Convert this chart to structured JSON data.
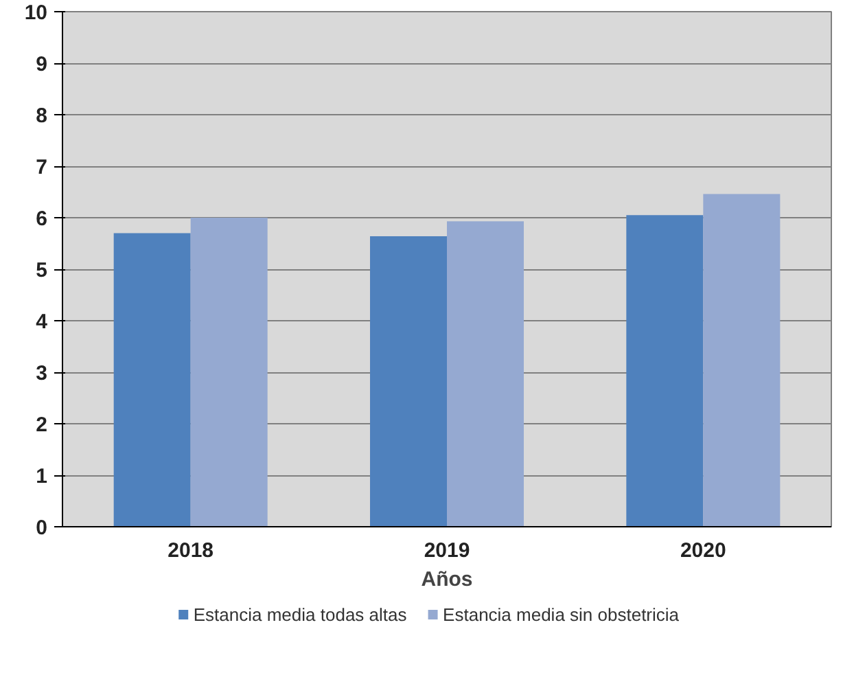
{
  "chart_data": {
    "type": "bar",
    "xlabel": "Años",
    "categories": [
      "2018",
      "2019",
      "2020"
    ],
    "series": [
      {
        "name": "Estancia media todas altas",
        "color": "#4f81bd",
        "values": [
          5.7,
          5.64,
          6.05
        ]
      },
      {
        "name": "Estancia media sin obstetricia",
        "color": "#95a9d1",
        "values": [
          6.0,
          5.93,
          6.46
        ]
      }
    ],
    "ylim": [
      0,
      10
    ],
    "yticks": [
      0,
      1,
      2,
      3,
      4,
      5,
      6,
      7,
      8,
      9,
      10
    ],
    "grid": "y",
    "legend": "bottom"
  }
}
